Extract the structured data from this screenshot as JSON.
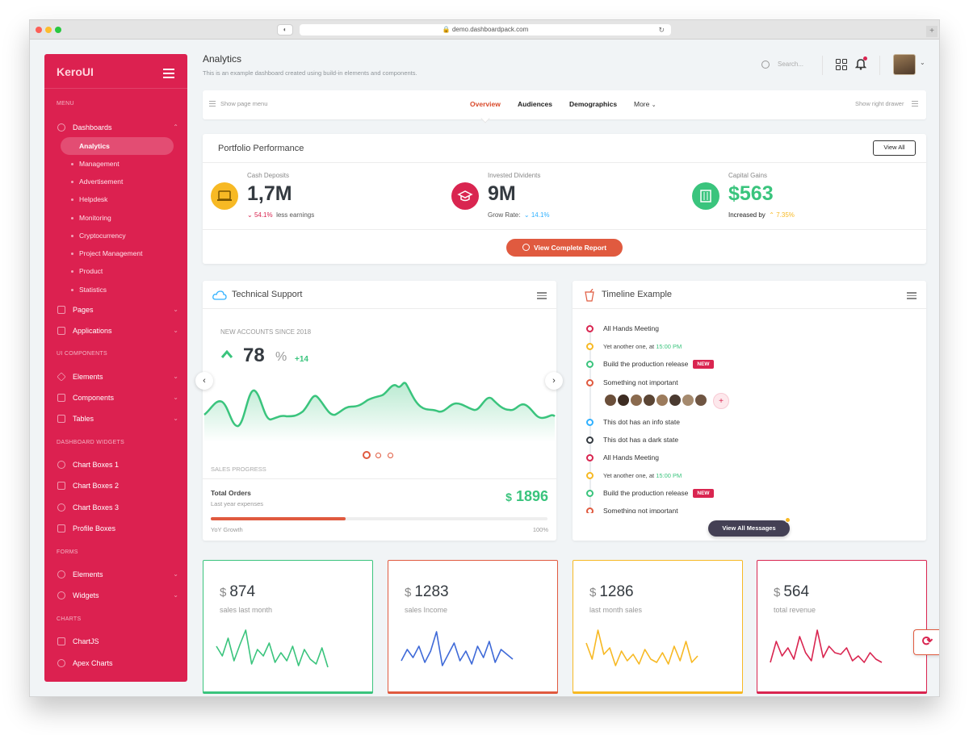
{
  "browser": {
    "url": "demo.dashboardpack.com"
  },
  "sidebar": {
    "logo": "KeroUI",
    "sections": {
      "menu": "MENU",
      "ui": "UI COMPONENTS",
      "widgets": "DASHBOARD WIDGETS",
      "forms": "FORMS",
      "charts": "CHARTS"
    },
    "dashboards": "Dashboards",
    "dashboard_items": [
      "Analytics",
      "Management",
      "Advertisement",
      "Helpdesk",
      "Monitoring",
      "Cryptocurrency",
      "Project Management",
      "Product",
      "Statistics"
    ],
    "pages": "Pages",
    "applications": "Applications",
    "ui_items": [
      "Elements",
      "Components",
      "Tables"
    ],
    "widget_items": [
      "Chart Boxes 1",
      "Chart Boxes 2",
      "Chart Boxes 3",
      "Profile Boxes"
    ],
    "form_items": [
      "Elements",
      "Widgets"
    ],
    "chart_items": [
      "ChartJS",
      "Apex Charts"
    ]
  },
  "header": {
    "title": "Analytics",
    "subtitle": "This is an example dashboard created using build-in elements and components.",
    "search_placeholder": "Search..."
  },
  "tabs": {
    "show_page_menu": "Show page menu",
    "items": [
      "Overview",
      "Audiences",
      "Demographics",
      "More"
    ],
    "active": "Overview",
    "show_right_drawer": "Show right drawer"
  },
  "portfolio": {
    "title": "Portfolio Performance",
    "view_all": "View All",
    "cash": {
      "label": "Cash Deposits",
      "value": "1,7M",
      "pct": "54.1%",
      "note": "less earnings"
    },
    "invested": {
      "label": "Invested Dividents",
      "value": "9M",
      "note": "Grow Rate:",
      "pct": "14.1%"
    },
    "capital": {
      "label": "Capital Gains",
      "value": "$563",
      "note": "Increased by",
      "pct": "7.35%"
    },
    "report_button": "View Complete Report",
    "colors": {
      "cash": "#f7b924",
      "invested": "#d92550",
      "capital": "#3ac47d"
    }
  },
  "support": {
    "title": "Technical Support",
    "kicker": "NEW ACCOUNTS SINCE 2018",
    "value": "78",
    "unit": "%",
    "delta": "+14",
    "sales_progress": "SALES PROGRESS",
    "total_orders": "Total Orders",
    "last_year": "Last year expenses",
    "amount_currency": "$",
    "amount": "1896",
    "yoy": "YoY Growth",
    "yoy_pct": "100%",
    "progress": 0.4
  },
  "timeline": {
    "title": "Timeline Example",
    "events": [
      {
        "text": "All Hands Meeting",
        "color": "#d92550",
        "kind": "title"
      },
      {
        "text": "Yet another one, at ",
        "time": "15:00 PM",
        "color": "#f7b924",
        "kind": "sub"
      },
      {
        "text": "Build the production release",
        "color": "#3ac47d",
        "kind": "title",
        "badge": "NEW"
      },
      {
        "text": "Something not important",
        "color": "#e05a3f",
        "kind": "title"
      },
      {
        "text": "This dot has an info state",
        "color": "#30b1ff",
        "kind": "title"
      },
      {
        "text": "This dot has a dark state",
        "color": "#343a40",
        "kind": "title"
      },
      {
        "text": "All Hands Meeting",
        "color": "#d92550",
        "kind": "title"
      },
      {
        "text": "Yet another one, at ",
        "time": "15:00 PM",
        "color": "#f7b924",
        "kind": "sub"
      },
      {
        "text": "Build the production release",
        "color": "#3ac47d",
        "kind": "title",
        "badge": "NEW"
      },
      {
        "text": "Something not important",
        "color": "#e05a3f",
        "kind": "title"
      }
    ],
    "view_all": "View All Messages"
  },
  "stats": [
    {
      "currency": "$",
      "value": "874",
      "label": "sales last month",
      "color": "#3ac47d"
    },
    {
      "currency": "$",
      "value": "1283",
      "label": "sales Income",
      "color": "#e05a3f"
    },
    {
      "currency": "$",
      "value": "1286",
      "label": "last month sales",
      "color": "#f7b924"
    },
    {
      "currency": "$",
      "value": "564",
      "label": "total revenue",
      "color": "#d92550"
    }
  ],
  "sparkline_colors": [
    "#3ac47d",
    "#3f6ad8",
    "#f7b924",
    "#d92550"
  ]
}
